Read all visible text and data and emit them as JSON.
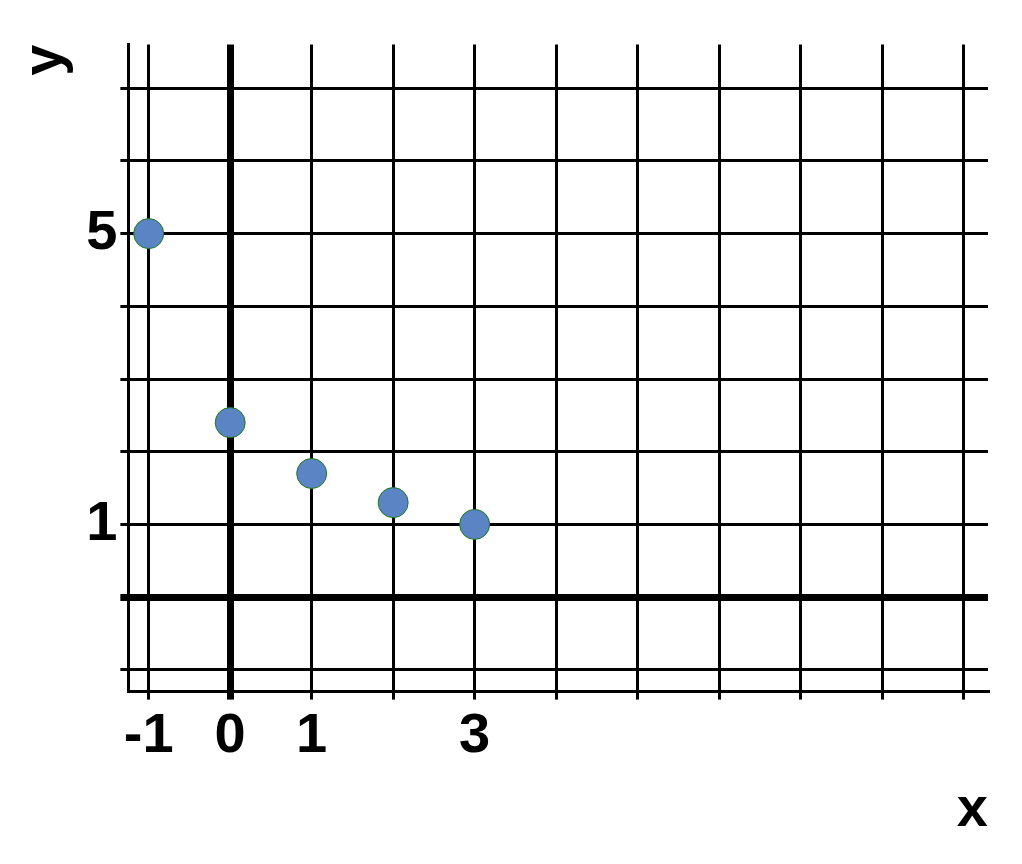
{
  "chart_data": {
    "type": "scatter",
    "xlabel": "x",
    "ylabel": "y",
    "x": [
      -1,
      0,
      1,
      2,
      3
    ],
    "series": [
      {
        "color": "#5b84c4",
        "values": [
          5,
          2.4,
          1.7,
          1.3,
          1
        ]
      }
    ],
    "xlim": [
      -1.25,
      9.3
    ],
    "ylim": [
      -1.3,
      7.6
    ],
    "xticks": [
      {
        "value": -1,
        "label": "-1"
      },
      {
        "value": 0,
        "label": "0"
      },
      {
        "value": 1,
        "label": "1"
      },
      {
        "value": 2,
        "label": null
      },
      {
        "value": 3,
        "label": "3"
      },
      {
        "value": 4,
        "label": null
      },
      {
        "value": 5,
        "label": null
      },
      {
        "value": 6,
        "label": null
      },
      {
        "value": 7,
        "label": null
      },
      {
        "value": 8,
        "label": null
      },
      {
        "value": 9,
        "label": null
      }
    ],
    "yticks": [
      {
        "value": -1,
        "label": null
      },
      {
        "value": 0,
        "label": null
      },
      {
        "value": 1,
        "label": "1"
      },
      {
        "value": 2,
        "label": null
      },
      {
        "value": 3,
        "label": null
      },
      {
        "value": 4,
        "label": null
      },
      {
        "value": 5,
        "label": "5"
      },
      {
        "value": 6,
        "label": null
      },
      {
        "value": 7,
        "label": null
      }
    ],
    "grid": true,
    "legend": false,
    "marker": "circle"
  }
}
